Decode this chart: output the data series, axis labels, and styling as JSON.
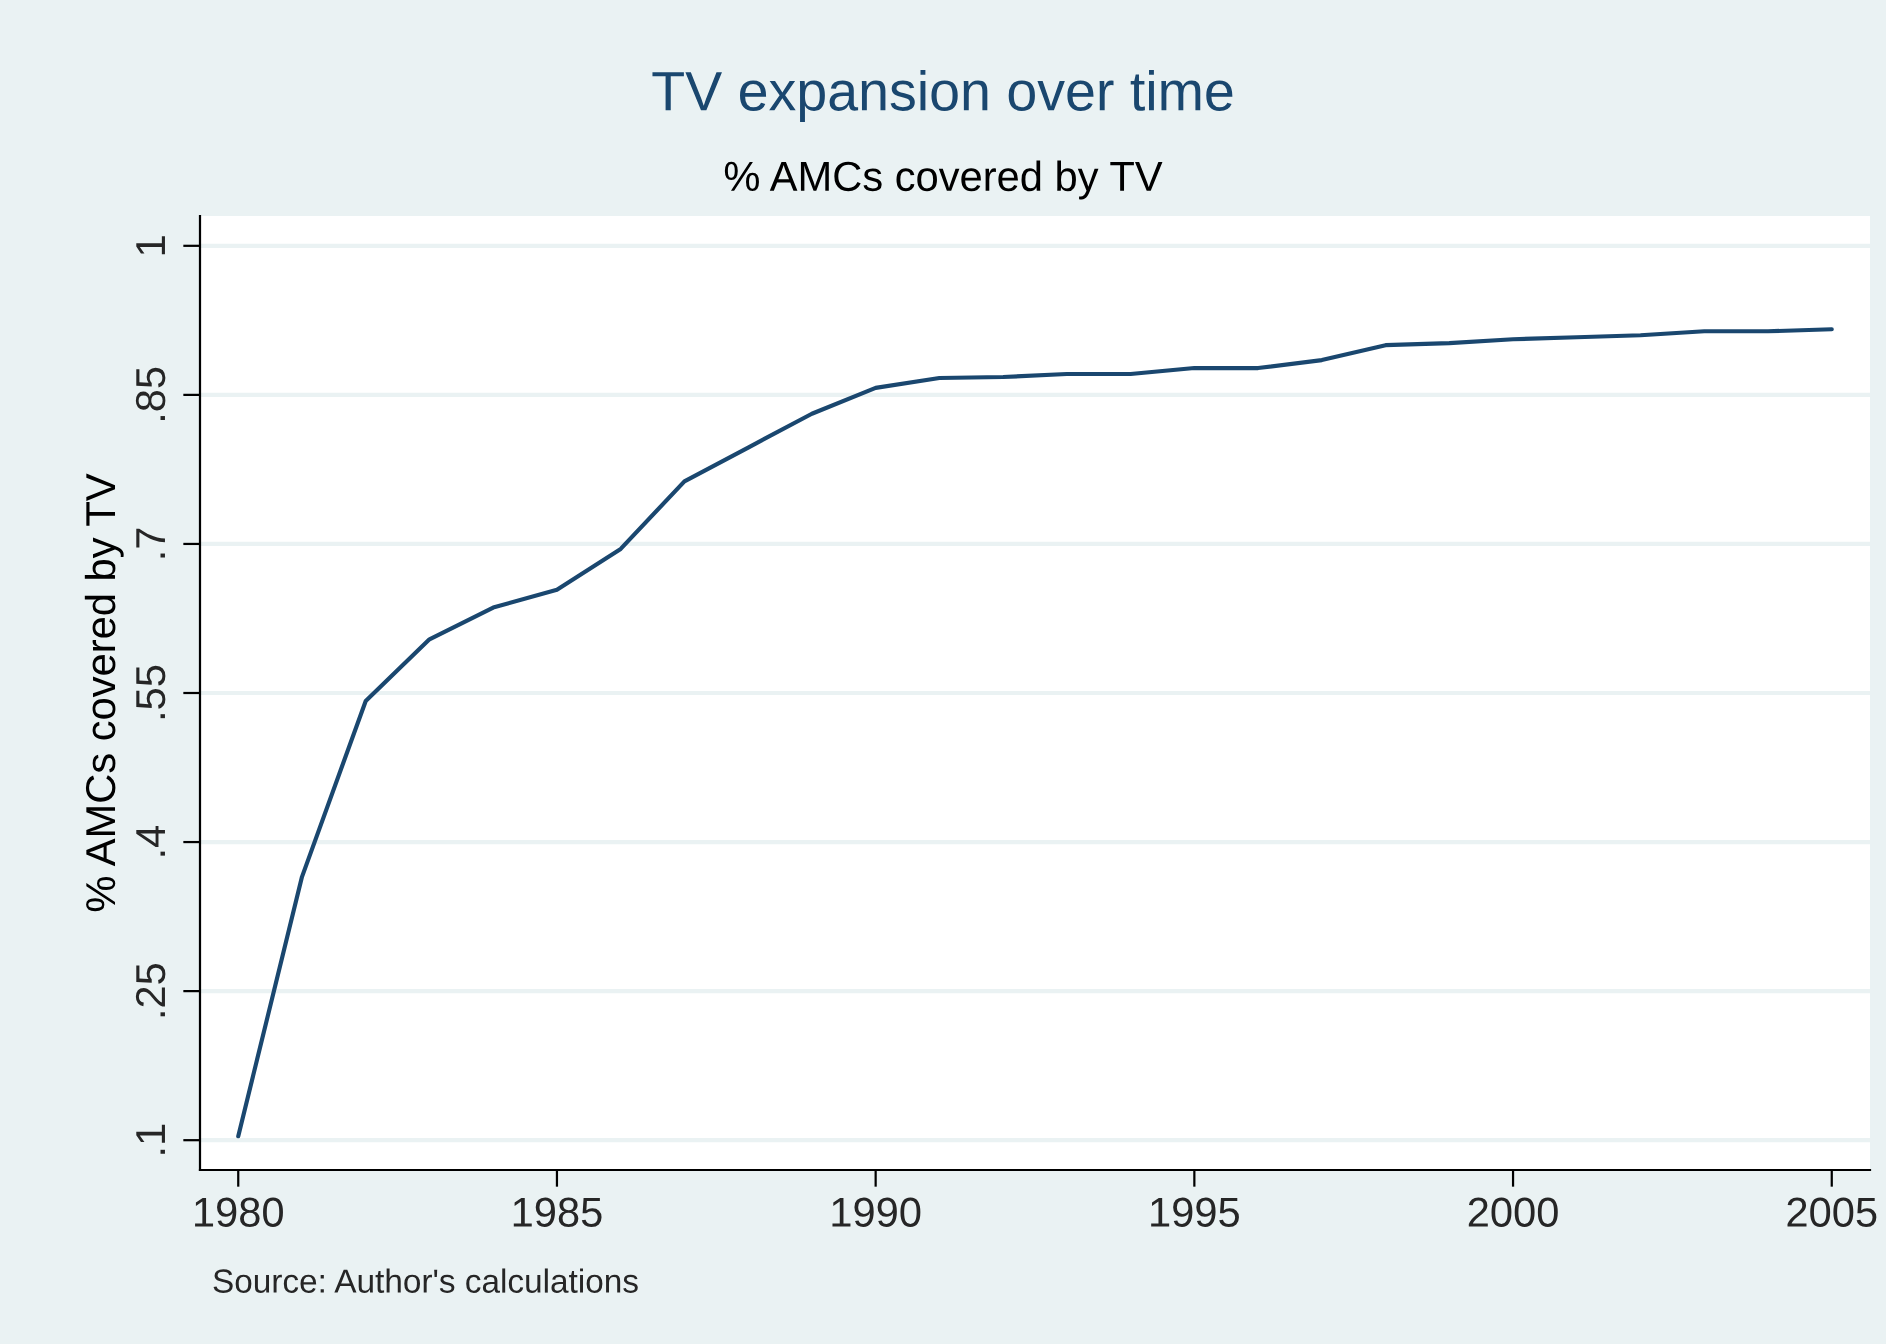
{
  "chart_data": {
    "type": "line",
    "title": "TV expansion over time",
    "subtitle": "% AMCs covered by TV",
    "ylabel": "% AMCs covered by TV",
    "x": [
      1980,
      1981,
      1982,
      1983,
      1984,
      1985,
      1986,
      1987,
      1988,
      1989,
      1990,
      1991,
      1992,
      1993,
      1994,
      1995,
      1996,
      1997,
      1998,
      1999,
      2000,
      2001,
      2002,
      2003,
      2004,
      2005
    ],
    "series": [
      {
        "color": "#1a476f",
        "values": [
          0.104,
          0.365,
          0.542,
          0.604,
          0.636,
          0.654,
          0.695,
          0.763,
          0.797,
          0.831,
          0.857,
          0.867,
          0.868,
          0.871,
          0.871,
          0.877,
          0.877,
          0.885,
          0.9,
          0.902,
          0.906,
          0.908,
          0.91,
          0.914,
          0.914,
          0.916
        ]
      }
    ],
    "xlim": [
      1979.4,
      2005.6
    ],
    "xticks": [
      1980,
      1985,
      1990,
      1995,
      2000,
      2005
    ],
    "ylim": [
      0.07,
      1.03
    ],
    "yticks": [
      {
        "value": 0.1,
        "label": ".1"
      },
      {
        "value": 0.25,
        "label": ".25"
      },
      {
        "value": 0.4,
        "label": ".4"
      },
      {
        "value": 0.55,
        "label": ".55"
      },
      {
        "value": 0.7,
        "label": ".7"
      },
      {
        "value": 0.85,
        "label": ".85"
      },
      {
        "value": 1,
        "label": "1"
      }
    ],
    "grid": "y",
    "line_style": "solid",
    "marker": "none",
    "annotations": [
      "Source: Author's calculations"
    ]
  }
}
